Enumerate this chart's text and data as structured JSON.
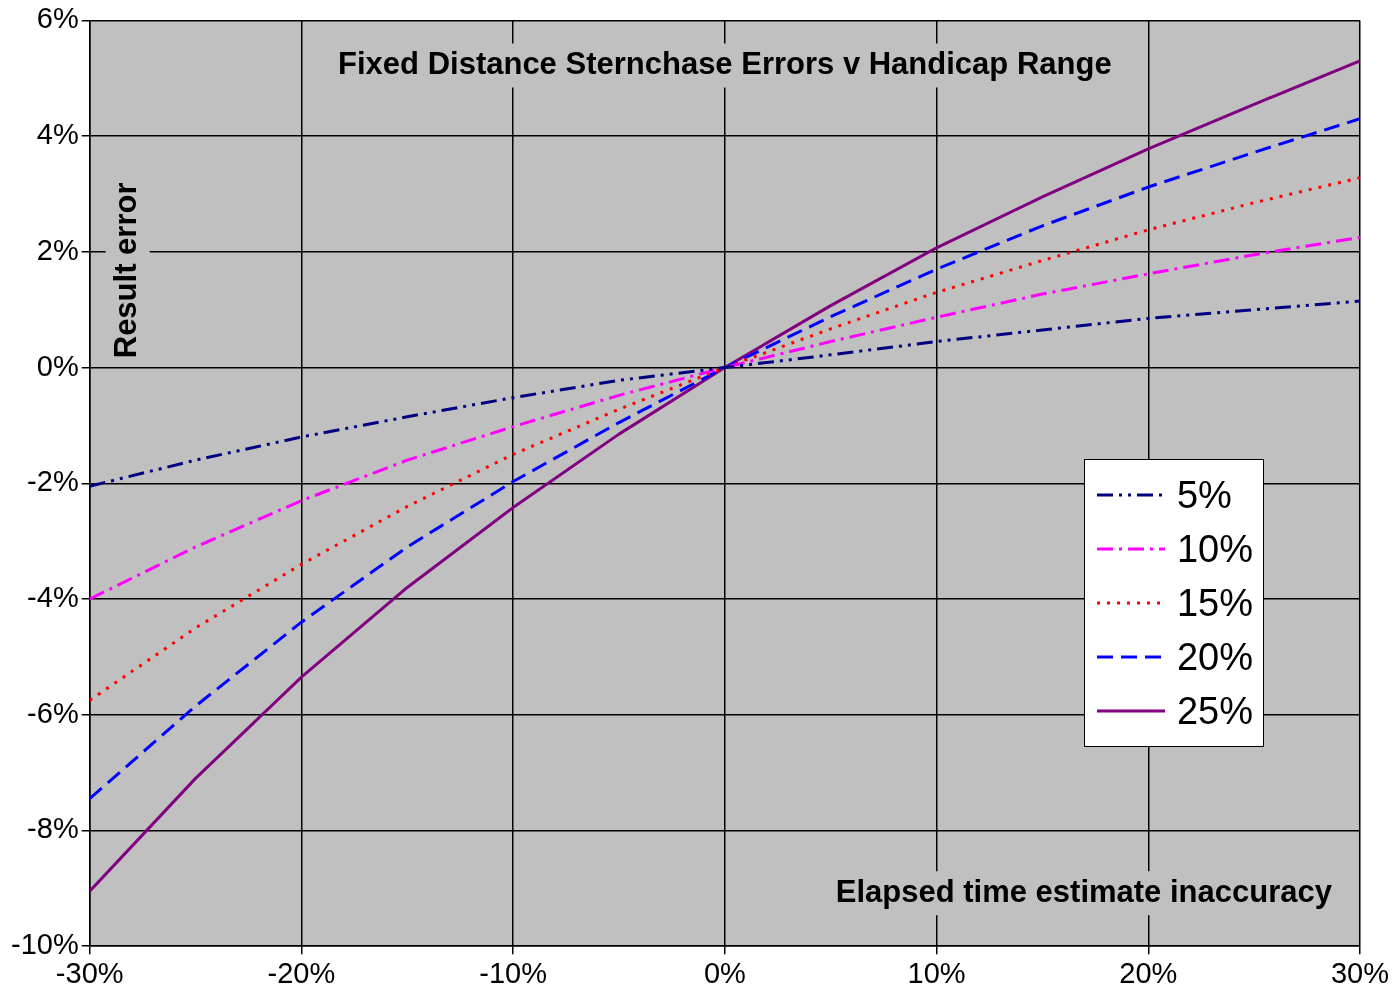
{
  "chart_data": {
    "type": "line",
    "title": "Fixed Distance Sternchase Errors v Handicap Range",
    "xlabel": "Elapsed time estimate inaccuracy",
    "ylabel": "Result error",
    "x": [
      -30,
      -25,
      -20,
      -15,
      -10,
      -5,
      0,
      5,
      10,
      15,
      20,
      25,
      30
    ],
    "xlim": [
      -30,
      30
    ],
    "xticks": [
      {
        "value": -30,
        "label": "-30%"
      },
      {
        "value": -20,
        "label": "-20%"
      },
      {
        "value": -10,
        "label": "-10%"
      },
      {
        "value": 0,
        "label": "0%"
      },
      {
        "value": 10,
        "label": "10%"
      },
      {
        "value": 20,
        "label": "20%"
      },
      {
        "value": 30,
        "label": "30%"
      }
    ],
    "ylim": [
      -10,
      6
    ],
    "yticks": [
      {
        "value": -10,
        "label": "-10%"
      },
      {
        "value": -8,
        "label": "-8%"
      },
      {
        "value": -6,
        "label": "-6%"
      },
      {
        "value": -4,
        "label": "-4%"
      },
      {
        "value": -2,
        "label": "-2%"
      },
      {
        "value": 0,
        "label": "0%"
      },
      {
        "value": 2,
        "label": "2%"
      },
      {
        "value": 4,
        "label": "4%"
      },
      {
        "value": 6,
        "label": "6%"
      }
    ],
    "grid": true,
    "legend": "right",
    "marker": "none",
    "series": [
      {
        "name": "5%",
        "color": "#000080",
        "line_style": "dashdotdot",
        "values": [
          -2.05,
          -1.6,
          -1.2,
          -0.85,
          -0.52,
          -0.22,
          0,
          0.22,
          0.45,
          0.65,
          0.85,
          1.0,
          1.15
        ]
      },
      {
        "name": "10%",
        "color": "#ff00ff",
        "line_style": "dashdot",
        "values": [
          -4.0,
          -3.1,
          -2.3,
          -1.6,
          -1.02,
          -0.48,
          0,
          0.45,
          0.87,
          1.27,
          1.62,
          1.95,
          2.25
        ]
      },
      {
        "name": "15%",
        "color": "#ff0000",
        "line_style": "dotted",
        "values": [
          -5.75,
          -4.5,
          -3.4,
          -2.4,
          -1.5,
          -0.72,
          0,
          0.67,
          1.3,
          1.85,
          2.38,
          2.85,
          3.28
        ]
      },
      {
        "name": "20%",
        "color": "#0000ff",
        "line_style": "dashed",
        "values": [
          -7.45,
          -5.85,
          -4.4,
          -3.1,
          -1.97,
          -0.95,
          0,
          0.88,
          1.7,
          2.45,
          3.12,
          3.72,
          4.3
        ]
      },
      {
        "name": "25%",
        "color": "#800080",
        "line_style": "solid",
        "values": [
          -9.05,
          -7.1,
          -5.35,
          -3.8,
          -2.42,
          -1.15,
          0,
          1.07,
          2.07,
          2.95,
          3.78,
          4.55,
          5.3
        ]
      }
    ]
  }
}
